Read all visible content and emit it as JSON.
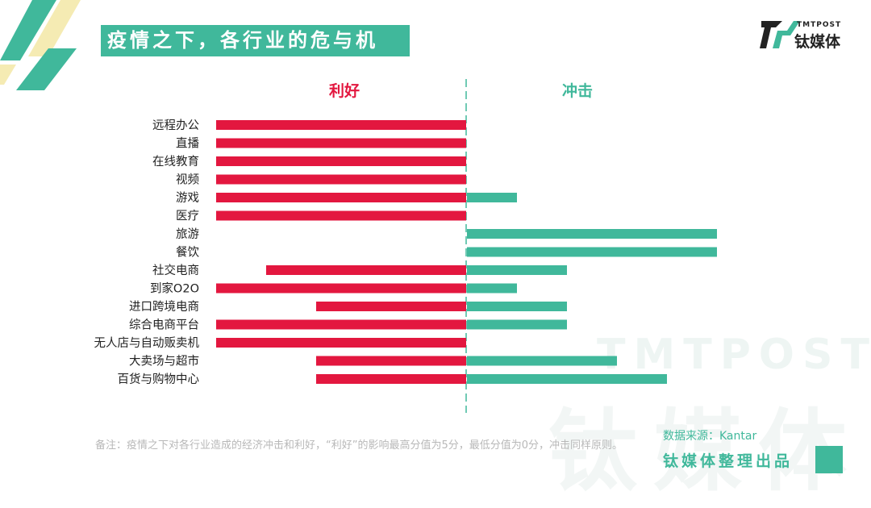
{
  "title": "疫情之下，各行业的危与机",
  "logo": {
    "small_text": "TMTPOST",
    "main_text": "钛媒体"
  },
  "watermark": {
    "en": "TMTPOST",
    "cn": "钛媒体"
  },
  "colors": {
    "positive": "#e3173f",
    "negative": "#40b89b",
    "brand": "#40b89b"
  },
  "chart_data": {
    "type": "bar",
    "orientation": "horizontal-diverging",
    "left_header": "利好",
    "right_header": "冲击",
    "categories": [
      "远程办公",
      "直播",
      "在线教育",
      "视频",
      "游戏",
      "医疗",
      "旅游",
      "餐饮",
      "社交电商",
      "到家O2O",
      "进口跨境电商",
      "综合电商平台",
      "无人店与自动贩卖机",
      "大卖场与超市",
      "百货与购物中心"
    ],
    "series": [
      {
        "name": "利好",
        "values": [
          5,
          5,
          5,
          5,
          5,
          5,
          0,
          0,
          4,
          5,
          3,
          5,
          5,
          3,
          3
        ]
      },
      {
        "name": "冲击",
        "values": [
          0,
          0,
          0,
          0,
          1,
          0,
          5,
          5,
          2,
          1,
          2,
          2,
          0,
          3,
          4
        ]
      }
    ],
    "xlim": [
      0,
      5
    ]
  },
  "footnote": "备注：疫情之下对各行业造成的经济冲击和利好，“利好”的影响最高分值为5分，最低分值为0分，冲击同样原则。",
  "source": "数据来源：Kantar",
  "brand": "钛媒体整理出品"
}
